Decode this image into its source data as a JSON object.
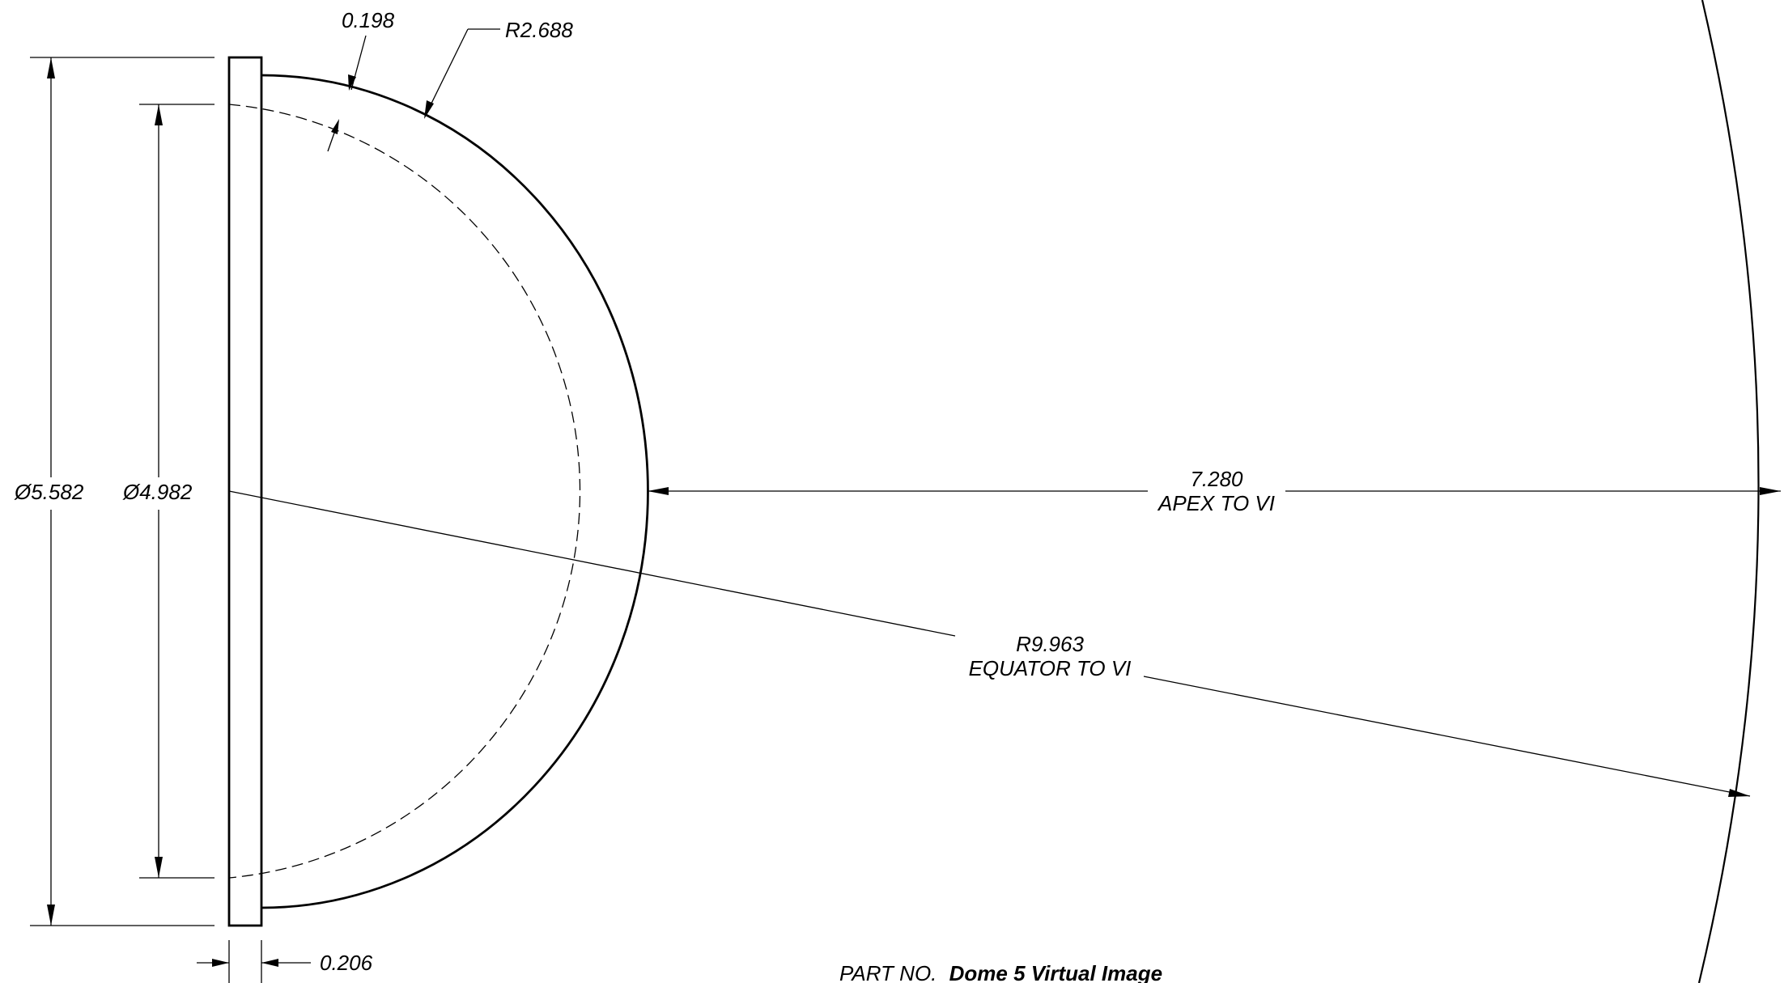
{
  "dimensions": {
    "outer_diameter": "Ø5.582",
    "inner_diameter": "Ø4.982",
    "wall_thickness": "0.198",
    "outer_radius": "R2.688",
    "apex_distance_value": "7.280",
    "apex_distance_label": "APEX TO VI",
    "equator_radius_value": "R9.963",
    "equator_radius_label": "EQUATOR TO VI",
    "flange_thickness": "0.206"
  },
  "title_block": {
    "part_no_label": "PART NO.",
    "part_no_value": "Dome 5 Virtual Image"
  }
}
